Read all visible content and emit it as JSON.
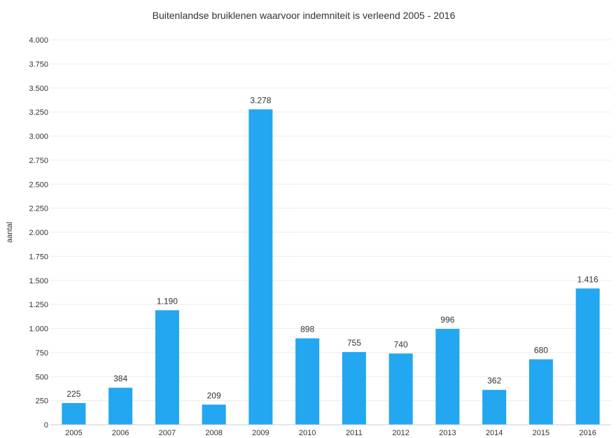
{
  "chart_data": {
    "type": "bar",
    "title": "Buitenlandse bruiklenen waarvoor indemniteit is verleend 2005 - 2016",
    "xlabel": "",
    "ylabel": "aantal",
    "categories": [
      "2005",
      "2006",
      "2007",
      "2008",
      "2009",
      "2010",
      "2011",
      "2012",
      "2013",
      "2014",
      "2015",
      "2016"
    ],
    "values": [
      225,
      384,
      1190,
      209,
      3278,
      898,
      755,
      740,
      996,
      362,
      680,
      1416
    ],
    "value_labels": [
      "225",
      "384",
      "1.190",
      "209",
      "3.278",
      "898",
      "755",
      "740",
      "996",
      "362",
      "680",
      "1.416"
    ],
    "ylim": [
      0,
      4000
    ],
    "yticks": [
      0,
      250,
      500,
      750,
      1000,
      1250,
      1500,
      1750,
      2000,
      2250,
      2500,
      2750,
      3000,
      3250,
      3500,
      3750,
      4000
    ],
    "ytick_labels": [
      "0",
      "250",
      "500",
      "750",
      "1.000",
      "1.250",
      "1.500",
      "1.750",
      "2.000",
      "2.250",
      "2.500",
      "2.750",
      "3.000",
      "3.250",
      "3.500",
      "3.750",
      "4.000"
    ],
    "grid": true,
    "legend": "none",
    "bar_color": "#22a7f0"
  }
}
